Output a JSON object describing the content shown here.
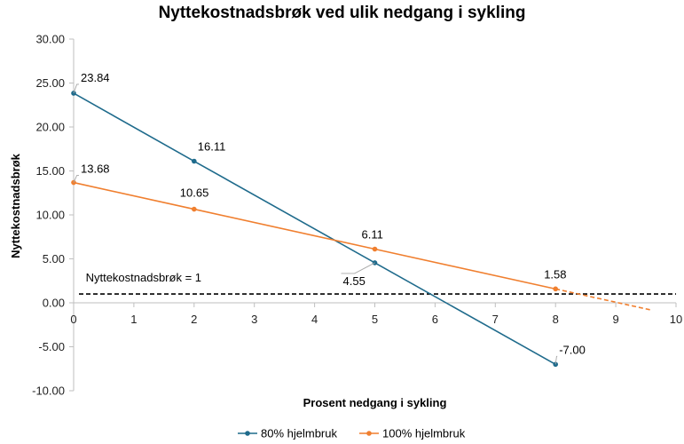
{
  "chart_data": {
    "type": "line",
    "title": "Nyttekostnadsbrøk ved ulik nedgang i sykling",
    "xlabel": "Prosent nedgang i sykling",
    "ylabel": "Nyttekostnadsbrøk",
    "xlim": [
      0,
      10
    ],
    "ylim": [
      -10,
      30
    ],
    "x_ticks": [
      0,
      1,
      2,
      3,
      4,
      5,
      6,
      7,
      8,
      9,
      10
    ],
    "y_ticks": [
      -10,
      -5,
      0,
      5,
      10,
      15,
      20,
      25,
      30
    ],
    "x_tick_labels": [
      "0",
      "1",
      "2",
      "3",
      "4",
      "5",
      "6",
      "7",
      "8",
      "9",
      "10"
    ],
    "y_tick_labels": [
      "-10.00",
      "-5.00",
      "0.00",
      "5.00",
      "10.00",
      "15.00",
      "20.00",
      "25.00",
      "30.00"
    ],
    "series": [
      {
        "name": "80% hjelmbruk",
        "color": "#1f6b8c",
        "x": [
          0,
          2,
          5,
          8
        ],
        "y": [
          23.84,
          16.11,
          4.55,
          -7.0
        ],
        "labels": [
          "23.84",
          "16.11",
          "4.55",
          "-7.00"
        ]
      },
      {
        "name": "100% hjelmbruk",
        "color": "#f07f2f",
        "x": [
          0,
          2,
          5,
          8
        ],
        "y": [
          13.68,
          10.65,
          6.11,
          1.58
        ],
        "labels": [
          "13.68",
          "10.65",
          "6.11",
          "1.58"
        ],
        "extrapolation": {
          "x": [
            8,
            9.6
          ],
          "y": [
            1.58,
            -0.84
          ],
          "style": "dashed"
        }
      }
    ],
    "reference_line": {
      "y": 1,
      "label": "Nyttekostnadsbrøk = 1",
      "style": "dashed",
      "color": "#000000"
    },
    "legend": {
      "placement": "bottom"
    },
    "grid": false
  }
}
